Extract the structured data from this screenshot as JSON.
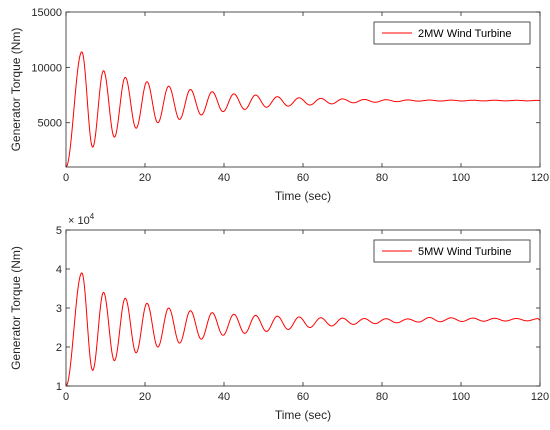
{
  "chart_data": [
    {
      "type": "line",
      "xlabel": "Time (sec)",
      "ylabel": "Generator Torque (Nm)",
      "xlim": [
        0,
        120
      ],
      "ylim": [
        1000,
        15000
      ],
      "xticks": [
        0,
        20,
        40,
        60,
        80,
        100,
        120
      ],
      "xtick_labels": [
        "0",
        "20",
        "40",
        "60",
        "80",
        "100",
        "120"
      ],
      "yticks": [
        5000,
        10000,
        15000
      ],
      "ytick_labels": [
        "5000",
        "10000",
        "15000"
      ],
      "exponent_label": "",
      "legend": "top-right",
      "series": [
        {
          "name": "2MW Wind Turbine",
          "color": "#ff0000",
          "steady_state": 7000,
          "start_value": 1000,
          "period": 5.5,
          "peaks": [
            [
              4.0,
              11400
            ],
            [
              9.5,
              9700
            ],
            [
              15.0,
              9100
            ],
            [
              20.5,
              8700
            ],
            [
              26.0,
              8300
            ],
            [
              31.5,
              8000
            ],
            [
              37.0,
              7800
            ],
            [
              42.5,
              7600
            ],
            [
              48.0,
              7500
            ],
            [
              53.5,
              7350
            ],
            [
              59.0,
              7250
            ],
            [
              64.5,
              7200
            ],
            [
              70.0,
              7150
            ],
            [
              75.5,
              7100
            ],
            [
              81.0,
              7080
            ],
            [
              86.5,
              7060
            ]
          ],
          "troughs": [
            [
              6.75,
              2800
            ],
            [
              12.25,
              3700
            ],
            [
              17.75,
              4500
            ],
            [
              23.25,
              5000
            ],
            [
              28.75,
              5300
            ],
            [
              34.25,
              5700
            ],
            [
              39.75,
              6000
            ],
            [
              45.25,
              6200
            ],
            [
              50.75,
              6400
            ],
            [
              56.25,
              6500
            ],
            [
              61.75,
              6600
            ],
            [
              67.25,
              6700
            ],
            [
              72.75,
              6800
            ],
            [
              78.25,
              6850
            ],
            [
              83.75,
              6900
            ],
            [
              89.25,
              6950
            ]
          ]
        }
      ]
    },
    {
      "type": "line",
      "xlabel": "Time (sec)",
      "ylabel": "Generator Torque (Nm)",
      "xlim": [
        0,
        120
      ],
      "ylim": [
        10000,
        50000
      ],
      "xticks": [
        0,
        20,
        40,
        60,
        80,
        100,
        120
      ],
      "xtick_labels": [
        "0",
        "20",
        "40",
        "60",
        "80",
        "100",
        "120"
      ],
      "yticks": [
        10000,
        20000,
        30000,
        40000,
        50000
      ],
      "ytick_labels": [
        "1",
        "2",
        "3",
        "4",
        "5"
      ],
      "exponent_label": "× 10",
      "exponent_power": "4",
      "legend": "top-right",
      "series": [
        {
          "name": "5MW Wind Turbine",
          "color": "#ff0000",
          "steady_state": 27000,
          "start_value": 10000,
          "period": 5.5,
          "peaks": [
            [
              4.0,
              39000
            ],
            [
              9.5,
              34000
            ],
            [
              15.0,
              32500
            ],
            [
              20.5,
              31200
            ],
            [
              26.0,
              30000
            ],
            [
              31.5,
              29300
            ],
            [
              37.0,
              28800
            ],
            [
              42.5,
              28400
            ],
            [
              48.0,
              28100
            ],
            [
              53.5,
              27900
            ],
            [
              59.0,
              27700
            ],
            [
              64.5,
              27500
            ],
            [
              70.0,
              27400
            ],
            [
              75.5,
              27300
            ],
            [
              81.0,
              27250
            ],
            [
              86.5,
              27200
            ]
          ],
          "troughs": [
            [
              6.75,
              14000
            ],
            [
              12.25,
              16500
            ],
            [
              17.75,
              18500
            ],
            [
              23.25,
              20000
            ],
            [
              28.75,
              21000
            ],
            [
              34.25,
              22000
            ],
            [
              39.75,
              23000
            ],
            [
              45.25,
              23500
            ],
            [
              50.75,
              24000
            ],
            [
              56.25,
              24500
            ],
            [
              61.75,
              25000
            ],
            [
              67.25,
              25400
            ],
            [
              72.75,
              25800
            ],
            [
              78.25,
              26000
            ],
            [
              83.75,
              26200
            ],
            [
              89.25,
              26400
            ]
          ]
        }
      ]
    }
  ]
}
